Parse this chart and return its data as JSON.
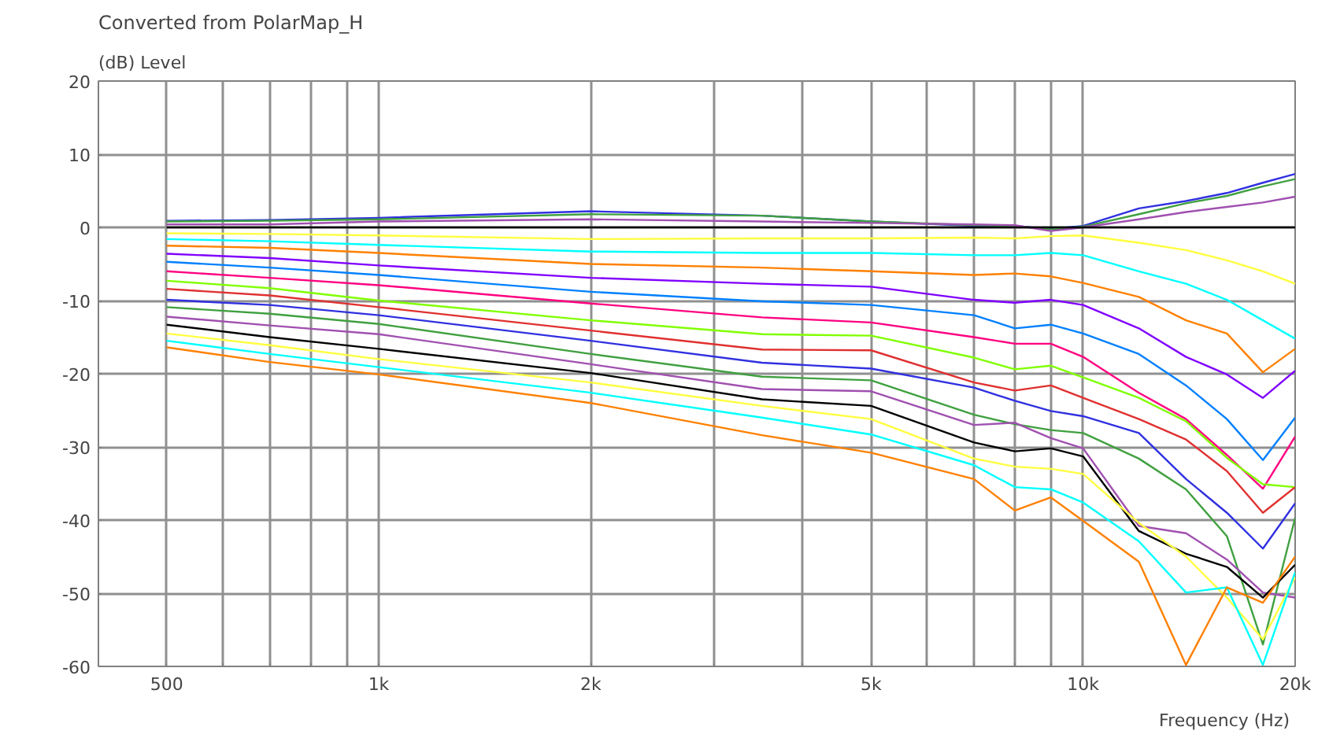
{
  "chart_data": {
    "type": "line",
    "title": "Converted from PolarMap_H",
    "ylabel": "(dB)  Level",
    "xlabel": "Frequency  (Hz)",
    "log": "x",
    "grid": true,
    "x": [
      500,
      700,
      1000,
      2000,
      3500,
      5000,
      7000,
      8000,
      9000,
      10000,
      12000,
      14000,
      16000,
      18000,
      20000
    ],
    "xlim": [
      400,
      20000
    ],
    "ylim": [
      -60,
      20
    ],
    "xticks": [
      500,
      {
        "value": 600,
        "label": null
      },
      {
        "value": 700,
        "label": null
      },
      {
        "value": 800,
        "label": null
      },
      {
        "value": 900,
        "label": null
      },
      {
        "value": 1000,
        "label": "1k"
      },
      {
        "value": 2000,
        "label": "2k"
      },
      {
        "value": 3000,
        "label": null
      },
      {
        "value": 4000,
        "label": null
      },
      {
        "value": 5000,
        "label": "5k"
      },
      {
        "value": 6000,
        "label": null
      },
      {
        "value": 7000,
        "label": null
      },
      {
        "value": 8000,
        "label": null
      },
      {
        "value": 9000,
        "label": null
      },
      {
        "value": 10000,
        "label": "10k"
      },
      {
        "value": 20000,
        "label": "20k"
      }
    ],
    "yticks": [
      -60,
      -50,
      -40,
      -30,
      -20,
      -10,
      0,
      10,
      20
    ],
    "series": [
      {
        "color": "#3030e0",
        "values": [
          0.9,
          1.0,
          1.3,
          2.2,
          1.6,
          0.8,
          0.2,
          0.2,
          -0.2,
          0.2,
          2.6,
          3.6,
          4.7,
          6.1,
          7.3
        ]
      },
      {
        "color": "#40a040",
        "values": [
          0.8,
          0.9,
          1.1,
          1.8,
          1.6,
          0.8,
          0.3,
          0.2,
          -0.3,
          0.1,
          1.8,
          3.3,
          4.3,
          5.6,
          6.6
        ]
      },
      {
        "color": "#a050b0",
        "values": [
          0.4,
          0.4,
          0.8,
          1.1,
          0.8,
          0.6,
          0.4,
          0.3,
          -0.5,
          0,
          1.1,
          2.1,
          2.8,
          3.4,
          4.2
        ]
      },
      {
        "color": "#000000",
        "values": [
          0,
          0,
          0,
          0,
          0,
          0,
          0,
          0,
          0,
          0,
          0,
          0,
          0,
          0,
          0
        ]
      },
      {
        "color": "#ffff40",
        "values": [
          -0.8,
          -0.9,
          -1.1,
          -1.6,
          -1.5,
          -1.5,
          -1.4,
          -1.5,
          -1.2,
          -1.1,
          -2.1,
          -3.1,
          -4.5,
          -6,
          -7.7
        ]
      },
      {
        "color": "#00ffff",
        "values": [
          -1.6,
          -1.9,
          -2.4,
          -3.3,
          -3.5,
          -3.5,
          -3.8,
          -3.8,
          -3.5,
          -3.8,
          -6,
          -7.7,
          -9.9,
          -12.7,
          -15.2
        ]
      },
      {
        "color": "#ff8000",
        "values": [
          -2.5,
          -2.8,
          -3.5,
          -5,
          -5.5,
          -6,
          -6.5,
          -6.3,
          -6.7,
          -7.6,
          -9.5,
          -12.7,
          -14.5,
          -19.8,
          -16.6
        ]
      },
      {
        "color": "#8000ff",
        "values": [
          -3.6,
          -4.2,
          -5.2,
          -6.9,
          -7.7,
          -8.1,
          -9.9,
          -10.3,
          -9.9,
          -10.6,
          -13.8,
          -17.7,
          -20.1,
          -23.3,
          -19.6
        ]
      },
      {
        "color": "#0080ff",
        "values": [
          -4.7,
          -5.5,
          -6.5,
          -8.8,
          -10.1,
          -10.6,
          -12,
          -13.8,
          -13.3,
          -14.5,
          -17.3,
          -21.6,
          -26.2,
          -31.8,
          -26
        ]
      },
      {
        "color": "#ff0080",
        "values": [
          -6,
          -6.9,
          -7.9,
          -10.4,
          -12.3,
          -13,
          -15,
          -15.9,
          -15.9,
          -17.7,
          -22.6,
          -26.2,
          -31.1,
          -35.7,
          -28.6
        ]
      },
      {
        "color": "#80ff00",
        "values": [
          -7.3,
          -8.3,
          -10,
          -12.7,
          -14.6,
          -14.8,
          -17.8,
          -19.4,
          -18.9,
          -20.5,
          -23.3,
          -26.5,
          -31.5,
          -35.1,
          -35.5
        ]
      },
      {
        "color": "#e03030",
        "values": [
          -8.4,
          -9.3,
          -10.9,
          -14.1,
          -16.7,
          -16.8,
          -21.2,
          -22.3,
          -21.6,
          -23.3,
          -26.2,
          -29,
          -33.3,
          -39,
          -35.5
        ]
      },
      {
        "color": "#3030e0",
        "values": [
          -9.9,
          -10.6,
          -12,
          -15.5,
          -18.5,
          -19.3,
          -21.9,
          -23.7,
          -25.1,
          -25.8,
          -28.1,
          -34.4,
          -39,
          -43.9,
          -37.7
        ]
      },
      {
        "color": "#40a040",
        "values": [
          -10.9,
          -11.8,
          -13.2,
          -17.3,
          -20.4,
          -20.9,
          -25.6,
          -26.9,
          -27.7,
          -28.1,
          -31.6,
          -35.8,
          -42.2,
          -57,
          -39.7
        ]
      },
      {
        "color": "#a050b0",
        "values": [
          -12.2,
          -13.4,
          -14.6,
          -18.7,
          -22.1,
          -22.4,
          -27,
          -26.7,
          -28.8,
          -30.2,
          -40.8,
          -41.8,
          -45.4,
          -49.9,
          -50.6
        ]
      },
      {
        "color": "#000000",
        "values": [
          -13.3,
          -15,
          -16.6,
          -19.9,
          -23.5,
          -24.4,
          -29.4,
          -30.6,
          -30.2,
          -31.3,
          -41.5,
          -44.6,
          -46.4,
          -50.6,
          -46.1
        ]
      },
      {
        "color": "#ffff40",
        "values": [
          -14.5,
          -16.1,
          -18,
          -21.2,
          -24.4,
          -26.2,
          -31.6,
          -32.7,
          -33,
          -33.7,
          -40.4,
          -45,
          -50.6,
          -56.3,
          -47.8
        ]
      },
      {
        "color": "#00ffff",
        "values": [
          -15.5,
          -17.3,
          -19.1,
          -22.6,
          -26,
          -28.3,
          -32.5,
          -35.5,
          -35.8,
          -37.6,
          -42.9,
          -49.9,
          -49.2,
          -59.8,
          -47.1
        ]
      },
      {
        "color": "#ff8000",
        "values": [
          -16.4,
          -18.4,
          -20.1,
          -24,
          -28.4,
          -30.8,
          -34.4,
          -38.7,
          -36.9,
          -40.1,
          -45.7,
          -59.8,
          -49.2,
          -51.3,
          -45
        ]
      }
    ]
  }
}
